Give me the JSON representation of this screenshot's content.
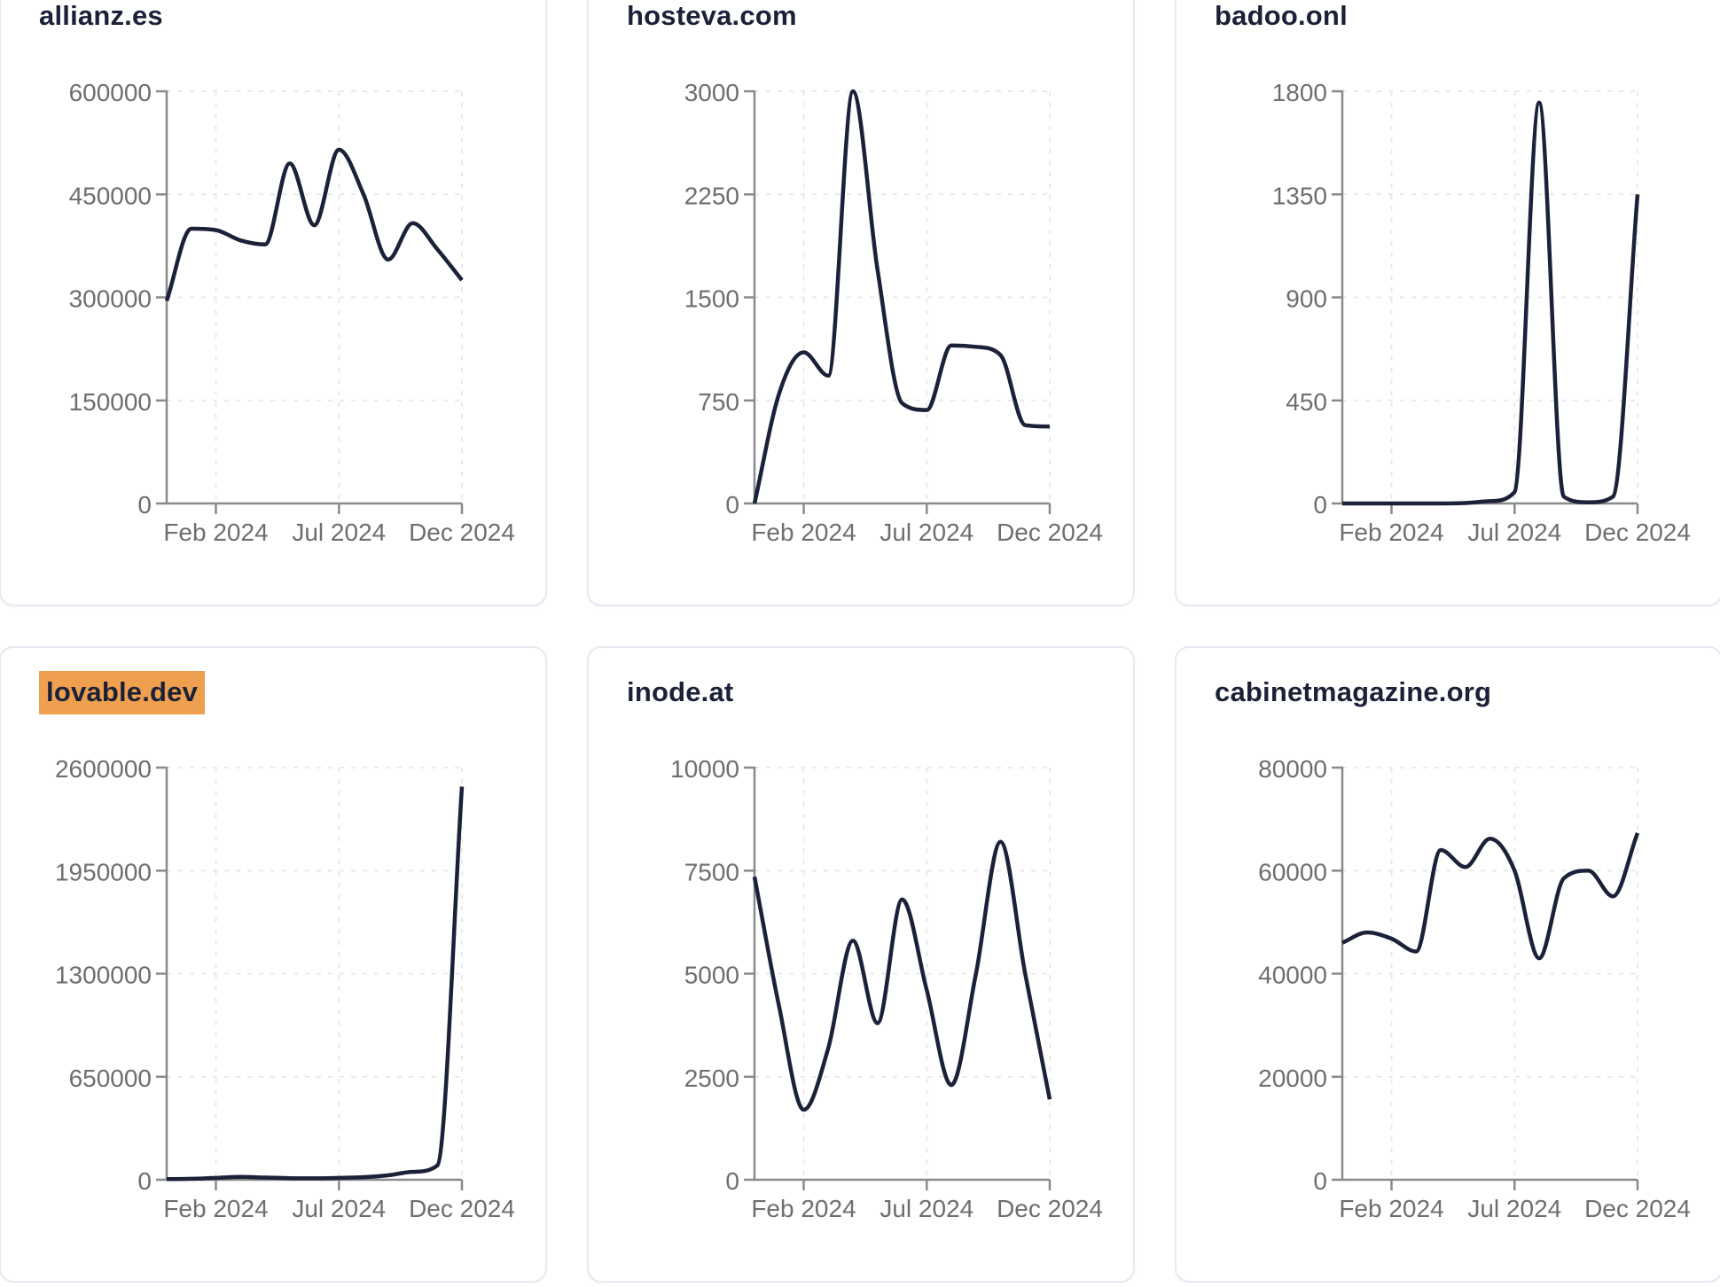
{
  "style": {
    "background": "#ffffff",
    "card_border": "#e5eaf2",
    "line_color": "#1b2138",
    "title_color": "#1b2138",
    "label_color": "#6e6e6e",
    "axis_color": "#8a8a8a",
    "grid_color": "#e9e9e9",
    "highlight_color": "#efa04e"
  },
  "chart_data": [
    {
      "type": "line",
      "title": "allianz.es",
      "highlighted": false,
      "x": [
        "2023-12",
        "2024-01",
        "2024-02",
        "2024-03",
        "2024-04",
        "2024-05",
        "2024-06",
        "2024-07",
        "2024-08",
        "2024-09",
        "2024-10",
        "2024-11",
        "2024-12"
      ],
      "x_tick_labels": [
        "Feb 2024",
        "Jul 2024",
        "Dec 2024"
      ],
      "x_tick_indices": [
        2,
        7,
        12
      ],
      "y_ticks": [
        0,
        150000,
        300000,
        450000,
        600000
      ],
      "ylim": [
        0,
        600000
      ],
      "grid": true,
      "values": [
        295000,
        400000,
        398000,
        383000,
        377000,
        495000,
        405000,
        515000,
        450000,
        355000,
        408000,
        370000,
        325000
      ]
    },
    {
      "type": "line",
      "title": "hosteva.com",
      "highlighted": false,
      "x": [
        "2023-12",
        "2024-01",
        "2024-02",
        "2024-03",
        "2024-04",
        "2024-05",
        "2024-06",
        "2024-07",
        "2024-08",
        "2024-09",
        "2024-10",
        "2024-11",
        "2024-12"
      ],
      "x_tick_labels": [
        "Feb 2024",
        "Jul 2024",
        "Dec 2024"
      ],
      "x_tick_indices": [
        2,
        7,
        12
      ],
      "y_ticks": [
        0,
        750,
        1500,
        2250,
        3000
      ],
      "ylim": [
        0,
        3000
      ],
      "grid": true,
      "values": [
        0,
        800,
        1100,
        930,
        3000,
        1700,
        730,
        680,
        1150,
        1140,
        1080,
        570,
        560
      ]
    },
    {
      "type": "line",
      "title": "badoo.onl",
      "highlighted": false,
      "x": [
        "2023-12",
        "2024-01",
        "2024-02",
        "2024-03",
        "2024-04",
        "2024-05",
        "2024-06",
        "2024-07",
        "2024-08",
        "2024-09",
        "2024-10",
        "2024-11",
        "2024-12"
      ],
      "x_tick_labels": [
        "Feb 2024",
        "Jul 2024",
        "Dec 2024"
      ],
      "x_tick_indices": [
        2,
        7,
        12
      ],
      "y_ticks": [
        0,
        450,
        900,
        1350,
        1800
      ],
      "ylim": [
        0,
        1800
      ],
      "grid": true,
      "values": [
        0,
        0,
        0,
        0,
        0,
        2,
        10,
        50,
        1750,
        30,
        5,
        30,
        1350
      ]
    },
    {
      "type": "line",
      "title": "lovable.dev",
      "highlighted": true,
      "x": [
        "2023-12",
        "2024-01",
        "2024-02",
        "2024-03",
        "2024-04",
        "2024-05",
        "2024-06",
        "2024-07",
        "2024-08",
        "2024-09",
        "2024-10",
        "2024-11",
        "2024-12"
      ],
      "x_tick_labels": [
        "Feb 2024",
        "Jul 2024",
        "Dec 2024"
      ],
      "x_tick_indices": [
        2,
        7,
        12
      ],
      "y_ticks": [
        0,
        650000,
        1300000,
        1950000,
        2600000
      ],
      "ylim": [
        0,
        2600000
      ],
      "grid": true,
      "values": [
        4000,
        6000,
        12000,
        18000,
        14000,
        10000,
        9000,
        12000,
        16000,
        28000,
        50000,
        90000,
        2480000
      ]
    },
    {
      "type": "line",
      "title": "inode.at",
      "highlighted": false,
      "x": [
        "2023-12",
        "2024-01",
        "2024-02",
        "2024-03",
        "2024-04",
        "2024-05",
        "2024-06",
        "2024-07",
        "2024-08",
        "2024-09",
        "2024-10",
        "2024-11",
        "2024-12"
      ],
      "x_tick_labels": [
        "Feb 2024",
        "Jul 2024",
        "Dec 2024"
      ],
      "x_tick_indices": [
        2,
        7,
        12
      ],
      "y_ticks": [
        0,
        2500,
        5000,
        7500,
        10000
      ],
      "ylim": [
        0,
        10000
      ],
      "grid": true,
      "values": [
        7350,
        4200,
        1700,
        3200,
        5800,
        3800,
        6800,
        4600,
        2300,
        5000,
        8200,
        5000,
        1950
      ]
    },
    {
      "type": "line",
      "title": "cabinetmagazine.org",
      "highlighted": false,
      "x": [
        "2023-12",
        "2024-01",
        "2024-02",
        "2024-03",
        "2024-04",
        "2024-05",
        "2024-06",
        "2024-07",
        "2024-08",
        "2024-09",
        "2024-10",
        "2024-11",
        "2024-12"
      ],
      "x_tick_labels": [
        "Feb 2024",
        "Jul 2024",
        "Dec 2024"
      ],
      "x_tick_indices": [
        2,
        7,
        12
      ],
      "y_ticks": [
        0,
        20000,
        40000,
        60000,
        80000
      ],
      "ylim": [
        0,
        80000
      ],
      "grid": true,
      "values": [
        46000,
        48000,
        46800,
        44300,
        64000,
        60700,
        66200,
        60000,
        43000,
        58500,
        60000,
        55000,
        67300
      ]
    }
  ]
}
